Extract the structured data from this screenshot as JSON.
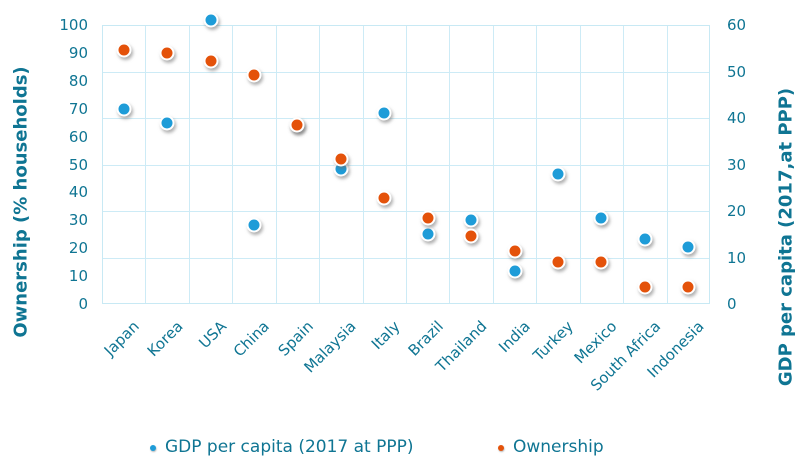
{
  "chart_data": {
    "type": "scatter",
    "title": "",
    "categories": [
      "Japan",
      "Korea",
      "USA",
      "China",
      "Spain",
      "Malaysia",
      "Italy",
      "Brazil",
      "Thailand",
      "India",
      "Turkey",
      "Mexico",
      "South Africa",
      "Indonesia"
    ],
    "series": [
      {
        "name": "GDP per capita (2017 at PPP)",
        "axis": "right",
        "color": "#1e9cd8",
        "values": [
          42,
          39,
          61,
          17,
          38.5,
          29,
          41,
          15,
          18,
          7,
          28,
          18.6,
          14,
          12.3
        ]
      },
      {
        "name": "Ownership",
        "axis": "left",
        "color": "#e4520a",
        "values": [
          91,
          90,
          87,
          82,
          64,
          52,
          38,
          31,
          24.5,
          19,
          15,
          15,
          6,
          6
        ]
      }
    ],
    "left_axis": {
      "title": "Ownership (% households)",
      "min": 0,
      "max": 100,
      "step": 10,
      "ticks": [
        "100",
        "90",
        "80",
        "70",
        "60",
        "50",
        "40",
        "30",
        "20",
        "10",
        "0"
      ]
    },
    "right_axis": {
      "title": "GDP per capita (2017,at PPP)",
      "min": 0,
      "max": 60,
      "step": 10,
      "ticks": [
        "60",
        "50",
        "40",
        "30",
        "20",
        "10",
        "0"
      ]
    },
    "grid": true,
    "legend_position": "bottom"
  },
  "legend": {
    "items": [
      {
        "label": "GDP per capita (2017 at PPP)",
        "color": "#1e9cd8"
      },
      {
        "label": "Ownership",
        "color": "#e4520a"
      }
    ]
  },
  "colors": {
    "text_teal": "#0f7593",
    "gridline": "#cdebf6",
    "background": "#ffffff",
    "gdp_blue": "#1e9cd8",
    "ownership_orange": "#e4520a"
  }
}
